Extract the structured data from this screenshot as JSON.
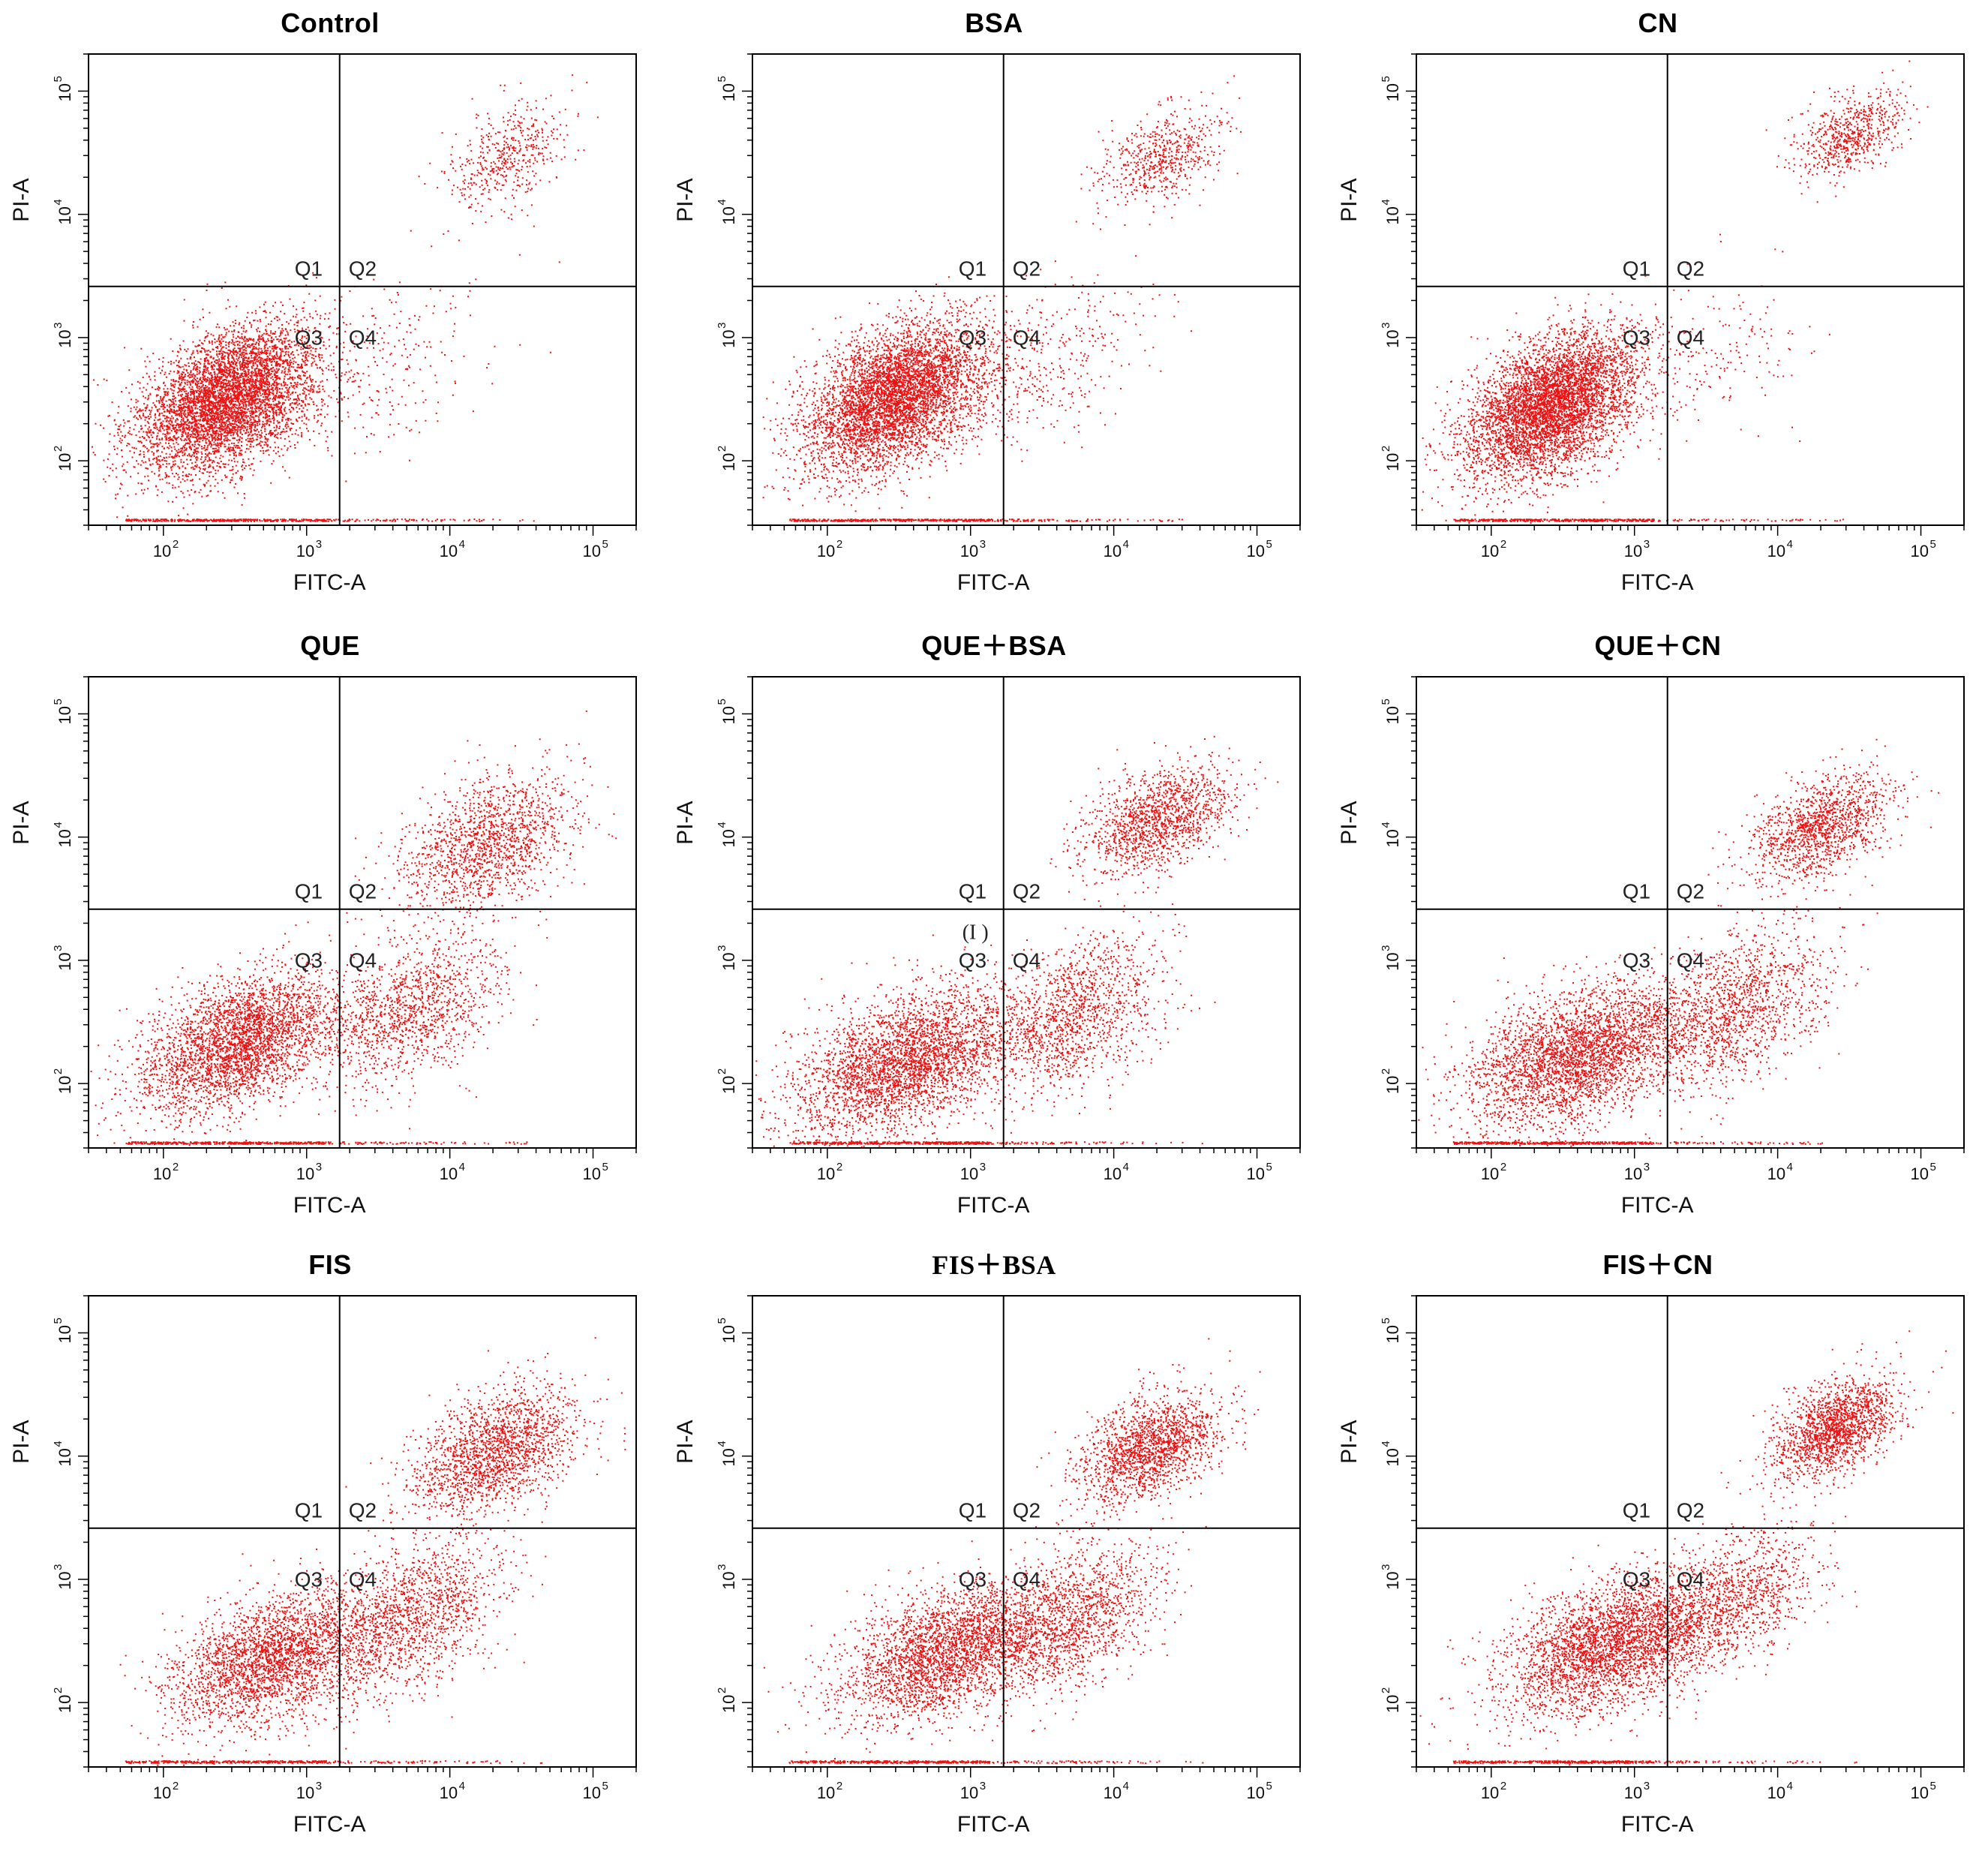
{
  "figure": {
    "colors": {
      "dots": "#ee1111",
      "axis": "#000000",
      "background": "#ffffff"
    }
  },
  "chart_data": [
    {
      "type": "scatter",
      "title": "Control",
      "xlabel": "FITC-A",
      "ylabel": "PI-A",
      "x_scale": "log",
      "y_scale": "log",
      "xlim": [
        30,
        200000
      ],
      "ylim": [
        30,
        200000
      ],
      "x_ticks": [
        "10^2",
        "10^3",
        "10^4",
        "10^5"
      ],
      "y_ticks": [
        "10^2",
        "10^3",
        "10^4",
        "10^5"
      ],
      "quadrant_gate": {
        "x": 1700,
        "y": 2600
      },
      "quadrants": [
        "Q1",
        "Q2",
        "Q3",
        "Q4"
      ],
      "populations": [
        {
          "quadrant": "Q3",
          "center": [
            280,
            320
          ],
          "spread": [
            0.32,
            0.3
          ],
          "share": 0.88
        },
        {
          "quadrant": "Q2",
          "center": [
            24000,
            28000
          ],
          "spread": [
            0.22,
            0.22
          ],
          "share": 0.08
        },
        {
          "quadrant": "Q4",
          "center": [
            3500,
            600
          ],
          "spread": [
            0.35,
            0.35
          ],
          "share": 0.04
        }
      ]
    },
    {
      "type": "scatter",
      "title": "BSA",
      "xlabel": "FITC-A",
      "ylabel": "PI-A",
      "x_scale": "log",
      "y_scale": "log",
      "xlim": [
        30,
        200000
      ],
      "ylim": [
        30,
        200000
      ],
      "x_ticks": [
        "10^2",
        "10^3",
        "10^4",
        "10^5"
      ],
      "y_ticks": [
        "10^2",
        "10^3",
        "10^4",
        "10^5"
      ],
      "quadrant_gate": {
        "x": 1700,
        "y": 2600
      },
      "quadrants": [
        "Q1",
        "Q2",
        "Q3",
        "Q4"
      ],
      "populations": [
        {
          "quadrant": "Q3",
          "center": [
            300,
            330
          ],
          "spread": [
            0.32,
            0.3
          ],
          "share": 0.84
        },
        {
          "quadrant": "Q2",
          "center": [
            22000,
            30000
          ],
          "spread": [
            0.22,
            0.22
          ],
          "share": 0.1
        },
        {
          "quadrant": "Q4",
          "center": [
            3500,
            600
          ],
          "spread": [
            0.35,
            0.35
          ],
          "share": 0.06
        }
      ]
    },
    {
      "type": "scatter",
      "title": "CN",
      "xlabel": "FITC-A",
      "ylabel": "PI-A",
      "x_scale": "log",
      "y_scale": "log",
      "xlim": [
        30,
        200000
      ],
      "ylim": [
        30,
        200000
      ],
      "x_ticks": [
        "10^2",
        "10^3",
        "10^4",
        "10^5"
      ],
      "y_ticks": [
        "10^2",
        "10^3",
        "10^4",
        "10^5"
      ],
      "quadrant_gate": {
        "x": 1700,
        "y": 2600
      },
      "quadrants": [
        "Q1",
        "Q2",
        "Q3",
        "Q4"
      ],
      "populations": [
        {
          "quadrant": "Q3",
          "center": [
            260,
            280
          ],
          "spread": [
            0.3,
            0.3
          ],
          "share": 0.86
        },
        {
          "quadrant": "Q2",
          "center": [
            32000,
            45000
          ],
          "spread": [
            0.18,
            0.18
          ],
          "share": 0.11
        },
        {
          "quadrant": "Q4",
          "center": [
            3500,
            600
          ],
          "spread": [
            0.35,
            0.35
          ],
          "share": 0.03
        }
      ]
    },
    {
      "type": "scatter",
      "title": "QUE",
      "xlabel": "FITC-A",
      "ylabel": "PI-A",
      "x_scale": "log",
      "y_scale": "log",
      "xlim": [
        30,
        200000
      ],
      "ylim": [
        30,
        200000
      ],
      "x_ticks": [
        "10^2",
        "10^3",
        "10^4",
        "10^5"
      ],
      "y_ticks": [
        "10^2",
        "10^3",
        "10^4",
        "10^5"
      ],
      "quadrant_gate": {
        "x": 1700,
        "y": 2600
      },
      "quadrants": [
        "Q1",
        "Q2",
        "Q3",
        "Q4"
      ],
      "populations": [
        {
          "quadrant": "Q3",
          "center": [
            350,
            220
          ],
          "spread": [
            0.35,
            0.28
          ],
          "share": 0.55
        },
        {
          "quadrant": "Q4",
          "center": [
            5500,
            400
          ],
          "spread": [
            0.3,
            0.3
          ],
          "share": 0.2
        },
        {
          "quadrant": "Q2",
          "center": [
            18000,
            9000
          ],
          "spread": [
            0.3,
            0.28
          ],
          "share": 0.25
        }
      ]
    },
    {
      "type": "scatter",
      "title": "QUE＋BSA",
      "xlabel": "FITC-A",
      "ylabel": "PI-A",
      "x_scale": "log",
      "y_scale": "log",
      "xlim": [
        30,
        200000
      ],
      "ylim": [
        30,
        200000
      ],
      "x_ticks": [
        "10^2",
        "10^3",
        "10^4",
        "10^5"
      ],
      "y_ticks": [
        "10^2",
        "10^3",
        "10^4",
        "10^5"
      ],
      "quadrant_gate": {
        "x": 1700,
        "y": 2600
      },
      "quadrants": [
        "Q1",
        "Q2",
        "Q3",
        "Q4"
      ],
      "annotation": "(I )",
      "populations": [
        {
          "quadrant": "Q3",
          "center": [
            350,
            150
          ],
          "spread": [
            0.38,
            0.3
          ],
          "share": 0.55
        },
        {
          "quadrant": "Q4",
          "center": [
            5000,
            350
          ],
          "spread": [
            0.32,
            0.32
          ],
          "share": 0.22
        },
        {
          "quadrant": "Q2",
          "center": [
            20000,
            14000
          ],
          "spread": [
            0.25,
            0.22
          ],
          "share": 0.23
        }
      ]
    },
    {
      "type": "scatter",
      "title": "QUE＋CN",
      "xlabel": "FITC-A",
      "ylabel": "PI-A",
      "x_scale": "log",
      "y_scale": "log",
      "xlim": [
        30,
        200000
      ],
      "ylim": [
        30,
        200000
      ],
      "x_ticks": [
        "10^2",
        "10^3",
        "10^4",
        "10^5"
      ],
      "y_ticks": [
        "10^2",
        "10^3",
        "10^4",
        "10^5"
      ],
      "quadrant_gate": {
        "x": 1700,
        "y": 2600
      },
      "quadrants": [
        "Q1",
        "Q2",
        "Q3",
        "Q4"
      ],
      "populations": [
        {
          "quadrant": "Q3",
          "center": [
            400,
            170
          ],
          "spread": [
            0.38,
            0.3
          ],
          "share": 0.55
        },
        {
          "quadrant": "Q4",
          "center": [
            5000,
            400
          ],
          "spread": [
            0.32,
            0.32
          ],
          "share": 0.23
        },
        {
          "quadrant": "Q2",
          "center": [
            20000,
            12000
          ],
          "spread": [
            0.25,
            0.22
          ],
          "share": 0.22
        }
      ]
    },
    {
      "type": "scatter",
      "title": "FIS",
      "xlabel": "FITC-A",
      "ylabel": "PI-A",
      "x_scale": "log",
      "y_scale": "log",
      "xlim": [
        30,
        200000
      ],
      "ylim": [
        30,
        200000
      ],
      "x_ticks": [
        "10^2",
        "10^3",
        "10^4",
        "10^5"
      ],
      "y_ticks": [
        "10^2",
        "10^3",
        "10^4",
        "10^5"
      ],
      "quadrant_gate": {
        "x": 1700,
        "y": 2600
      },
      "quadrants": [
        "Q1",
        "Q2",
        "Q3",
        "Q4"
      ],
      "populations": [
        {
          "quadrant": "Q3",
          "center": [
            550,
            230
          ],
          "spread": [
            0.35,
            0.28
          ],
          "share": 0.45
        },
        {
          "quadrant": "Q4",
          "center": [
            5000,
            500
          ],
          "spread": [
            0.32,
            0.32
          ],
          "share": 0.25
        },
        {
          "quadrant": "Q2",
          "center": [
            20000,
            11000
          ],
          "spread": [
            0.28,
            0.25
          ],
          "share": 0.3
        }
      ]
    },
    {
      "type": "scatter",
      "title": "FIS＋BSA",
      "xlabel": "FITC-A",
      "ylabel": "PI-A",
      "x_scale": "log",
      "y_scale": "log",
      "xlim": [
        30,
        200000
      ],
      "ylim": [
        30,
        200000
      ],
      "x_ticks": [
        "10^2",
        "10^3",
        "10^4",
        "10^5"
      ],
      "y_ticks": [
        "10^2",
        "10^3",
        "10^4",
        "10^5"
      ],
      "quadrant_gate": {
        "x": 1700,
        "y": 2600
      },
      "quadrants": [
        "Q1",
        "Q2",
        "Q3",
        "Q4"
      ],
      "populations": [
        {
          "quadrant": "Q3",
          "center": [
            700,
            260
          ],
          "spread": [
            0.38,
            0.28
          ],
          "share": 0.5
        },
        {
          "quadrant": "Q4",
          "center": [
            5500,
            500
          ],
          "spread": [
            0.3,
            0.3
          ],
          "share": 0.22
        },
        {
          "quadrant": "Q2",
          "center": [
            18000,
            12000
          ],
          "spread": [
            0.25,
            0.22
          ],
          "share": 0.28
        }
      ]
    },
    {
      "type": "scatter",
      "title": "FIS＋CN",
      "xlabel": "FITC-A",
      "ylabel": "PI-A",
      "x_scale": "log",
      "y_scale": "log",
      "xlim": [
        30,
        200000
      ],
      "ylim": [
        30,
        200000
      ],
      "x_ticks": [
        "10^2",
        "10^3",
        "10^4",
        "10^5"
      ],
      "y_ticks": [
        "10^2",
        "10^3",
        "10^4",
        "10^5"
      ],
      "quadrant_gate": {
        "x": 1700,
        "y": 2600
      },
      "quadrants": [
        "Q1",
        "Q2",
        "Q3",
        "Q4"
      ],
      "populations": [
        {
          "quadrant": "Q3",
          "center": [
            700,
            300
          ],
          "spread": [
            0.38,
            0.28
          ],
          "share": 0.55
        },
        {
          "quadrant": "Q4",
          "center": [
            5000,
            700
          ],
          "spread": [
            0.3,
            0.28
          ],
          "share": 0.17
        },
        {
          "quadrant": "Q2",
          "center": [
            25000,
            17000
          ],
          "spread": [
            0.22,
            0.2
          ],
          "share": 0.28
        }
      ]
    }
  ]
}
